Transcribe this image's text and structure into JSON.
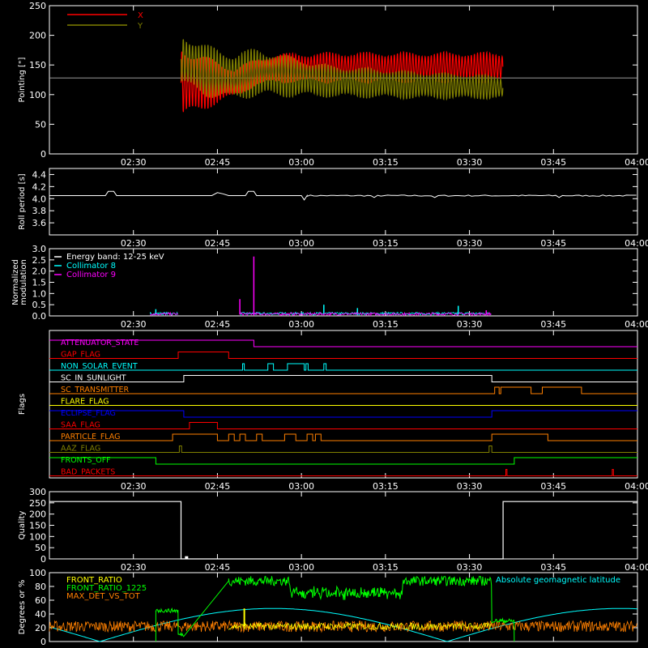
{
  "x_ticks": [
    "02:30",
    "02:45",
    "03:00",
    "03:15",
    "03:30",
    "03:45",
    "04:00"
  ],
  "chart_data": [
    {
      "type": "line",
      "ylabel": "Pointing [\"]",
      "ylim": [
        0,
        250
      ],
      "y_ticks": [
        "0",
        "50",
        "100",
        "150",
        "200",
        "250"
      ],
      "x_range_minutes": [
        15,
        120
      ],
      "legend": [
        {
          "name": "X",
          "color": "#ff0000"
        },
        {
          "name": "Y",
          "color": "#808000"
        }
      ],
      "baseline": 128,
      "data_interval": [
        38.5,
        96
      ],
      "series": [
        {
          "name": "X",
          "color": "#ff0000",
          "envelope": [
            {
              "t": 38.5,
              "lo": 55,
              "hi": 185
            },
            {
              "t": 43,
              "lo": 75,
              "hi": 165
            },
            {
              "t": 48,
              "lo": 95,
              "hi": 145
            },
            {
              "t": 52,
              "lo": 115,
              "hi": 160
            },
            {
              "t": 56,
              "lo": 120,
              "hi": 170
            },
            {
              "t": 65,
              "lo": 120,
              "hi": 172
            },
            {
              "t": 80,
              "lo": 120,
              "hi": 172
            },
            {
              "t": 96,
              "lo": 120,
              "hi": 172
            }
          ]
        },
        {
          "name": "Y",
          "color": "#808000",
          "envelope": [
            {
              "t": 38.5,
              "lo": 115,
              "hi": 205
            },
            {
              "t": 43,
              "lo": 95,
              "hi": 185
            },
            {
              "t": 48,
              "lo": 90,
              "hi": 170
            },
            {
              "t": 52,
              "lo": 95,
              "hi": 180
            },
            {
              "t": 56,
              "lo": 95,
              "hi": 170
            },
            {
              "t": 65,
              "lo": 95,
              "hi": 150
            },
            {
              "t": 80,
              "lo": 92,
              "hi": 140
            },
            {
              "t": 96,
              "lo": 92,
              "hi": 132
            }
          ]
        }
      ]
    },
    {
      "type": "line",
      "ylabel": "Roll period [s]",
      "ylim": [
        3.4,
        4.5
      ],
      "y_ticks": [
        "3.6",
        "3.8",
        "4.0",
        "4.2",
        "4.4"
      ],
      "series": [
        {
          "name": "",
          "color": "#ffffff",
          "baseline": 4.05,
          "x": [
            15,
            25,
            25.5,
            26.5,
            27,
            44,
            45,
            46,
            47,
            50,
            50.5,
            51.5,
            52,
            60,
            60.5,
            61
          ],
          "y": [
            4.05,
            4.05,
            4.12,
            4.12,
            4.05,
            4.05,
            4.1,
            4.08,
            4.05,
            4.05,
            4.12,
            4.12,
            4.05,
            4.05,
            3.98,
            4.05
          ]
        }
      ]
    },
    {
      "type": "line",
      "ylabel": "Normalized modulation",
      "ylim": [
        0,
        3.0
      ],
      "y_ticks": [
        "0.0",
        "0.5",
        "1.0",
        "1.5",
        "2.0",
        "2.5",
        "3.0"
      ],
      "legend": [
        {
          "name": "Energy band: 12-25 keV",
          "color": "#ffffff"
        },
        {
          "name": "Collimator 8",
          "color": "#00ffff"
        },
        {
          "name": "Collimator 9",
          "color": "#ff00ff"
        }
      ],
      "series": [
        {
          "name": "Collimator 8",
          "color": "#00ffff",
          "baseline": 0.08,
          "spikes": [
            {
              "t": 34,
              "v": 0.3
            },
            {
              "t": 64,
              "v": 0.5
            },
            {
              "t": 70,
              "v": 0.35
            },
            {
              "t": 88,
              "v": 0.45
            }
          ]
        },
        {
          "name": "Collimator 9",
          "color": "#ff00ff",
          "baseline": 0.06,
          "spikes": [
            {
              "t": 49,
              "v": 0.75
            },
            {
              "t": 51.5,
              "v": 2.65
            },
            {
              "t": 93,
              "v": 0.25
            }
          ]
        }
      ],
      "intervals": [
        [
          33,
          38
        ],
        [
          49,
          94
        ]
      ]
    },
    {
      "type": "table",
      "ylabel": "Flags",
      "flags": [
        {
          "name": "ATTENUATOR_STATE",
          "color": "#ff00ff",
          "steps": [
            {
              "t": 15,
              "v": 1
            },
            {
              "t": 51.5,
              "v": 0
            }
          ]
        },
        {
          "name": "GAP_FLAG",
          "color": "#ff0000",
          "steps": [
            {
              "t": 15,
              "v": 0
            },
            {
              "t": 38,
              "v": 1
            },
            {
              "t": 47,
              "v": 0
            }
          ]
        },
        {
          "name": "NON_SOLAR_EVENT",
          "color": "#00ffff",
          "steps": [
            {
              "t": 15,
              "v": 0
            },
            {
              "t": 49.5,
              "v": 1
            },
            {
              "t": 49.8,
              "v": 0
            },
            {
              "t": 54,
              "v": 1
            },
            {
              "t": 55,
              "v": 0
            },
            {
              "t": 57.5,
              "v": 1
            },
            {
              "t": 60.5,
              "v": 0
            },
            {
              "t": 60.8,
              "v": 1
            },
            {
              "t": 61.2,
              "v": 0
            },
            {
              "t": 64,
              "v": 1
            },
            {
              "t": 64.4,
              "v": 0
            }
          ]
        },
        {
          "name": "SC_IN_SUNLIGHT",
          "color": "#ffffff",
          "steps": [
            {
              "t": 15,
              "v": 0
            },
            {
              "t": 39,
              "v": 1
            },
            {
              "t": 94,
              "v": 0
            }
          ]
        },
        {
          "name": "SC_TRANSMITTER",
          "color": "#ff8000",
          "steps": [
            {
              "t": 15,
              "v": 0
            },
            {
              "t": 94.5,
              "v": 1
            },
            {
              "t": 95.3,
              "v": 0
            },
            {
              "t": 95.6,
              "v": 1
            },
            {
              "t": 101,
              "v": 0
            },
            {
              "t": 103,
              "v": 1
            },
            {
              "t": 110,
              "v": 0
            }
          ]
        },
        {
          "name": "FLARE_FLAG",
          "color": "#ffff00",
          "steps": [
            {
              "t": 15,
              "v": 0
            }
          ]
        },
        {
          "name": "ECLIPSE_FLAG",
          "color": "#0000ff",
          "steps": [
            {
              "t": 15,
              "v": 1
            },
            {
              "t": 39,
              "v": 0
            },
            {
              "t": 94,
              "v": 1
            }
          ]
        },
        {
          "name": "SAA_FLAG",
          "color": "#ff0000",
          "steps": [
            {
              "t": 15,
              "v": 0
            },
            {
              "t": 40,
              "v": 1
            },
            {
              "t": 45,
              "v": 0
            }
          ]
        },
        {
          "name": "PARTICLE_FLAG",
          "color": "#ff8000",
          "steps": [
            {
              "t": 15,
              "v": 0
            },
            {
              "t": 37,
              "v": 1
            },
            {
              "t": 45,
              "v": 0
            },
            {
              "t": 47,
              "v": 1
            },
            {
              "t": 48,
              "v": 0
            },
            {
              "t": 49,
              "v": 1
            },
            {
              "t": 50,
              "v": 0
            },
            {
              "t": 52,
              "v": 1
            },
            {
              "t": 53,
              "v": 0
            },
            {
              "t": 57,
              "v": 1
            },
            {
              "t": 59,
              "v": 0
            },
            {
              "t": 61,
              "v": 1
            },
            {
              "t": 62,
              "v": 0
            },
            {
              "t": 62.5,
              "v": 1
            },
            {
              "t": 63.5,
              "v": 0
            },
            {
              "t": 94,
              "v": 1
            },
            {
              "t": 104,
              "v": 0
            }
          ]
        },
        {
          "name": "AAZ_FLAG",
          "color": "#808000",
          "steps": [
            {
              "t": 15,
              "v": 0
            },
            {
              "t": 38.2,
              "v": 1
            },
            {
              "t": 38.6,
              "v": 0
            },
            {
              "t": 93.5,
              "v": 1
            },
            {
              "t": 94,
              "v": 0
            }
          ]
        },
        {
          "name": "FRONTS_OFF",
          "color": "#00ff00",
          "steps": [
            {
              "t": 15,
              "v": 1
            },
            {
              "t": 34,
              "v": 0
            },
            {
              "t": 98,
              "v": 1
            }
          ]
        },
        {
          "name": "BAD_PACKETS",
          "color": "#ff0000",
          "steps": [
            {
              "t": 15,
              "v": 0
            },
            {
              "t": 96.5,
              "v": 1
            },
            {
              "t": 96.7,
              "v": 0
            },
            {
              "t": 115.5,
              "v": 1
            },
            {
              "t": 115.7,
              "v": 0
            }
          ]
        }
      ]
    },
    {
      "type": "line",
      "ylabel": "Quality",
      "ylim": [
        0,
        300
      ],
      "y_ticks": [
        "0",
        "50",
        "100",
        "150",
        "200",
        "250",
        "300"
      ],
      "series": [
        {
          "name": "",
          "color": "#ffffff",
          "x": [
            15,
            38.5,
            38.5,
            39.5,
            39.5,
            96,
            96,
            120
          ],
          "y": [
            256,
            256,
            0,
            0,
            0,
            0,
            256,
            256
          ]
        }
      ]
    },
    {
      "type": "line",
      "ylabel": "Degrees or %",
      "ylim": [
        0,
        100
      ],
      "y_ticks": [
        "0",
        "20",
        "40",
        "60",
        "80",
        "100"
      ],
      "legend": [
        {
          "name": "FRONT_RATIO",
          "color": "#ffff00"
        },
        {
          "name": "FRONT_RATIO_1225",
          "color": "#00ff00"
        },
        {
          "name": "MAX_DET_VS_TOT",
          "color": "#ff8000"
        }
      ],
      "right_legend": {
        "name": "Absolute geomagnetic latitude",
        "color": "#00ffff"
      },
      "series": [
        {
          "name": "FRONT_RATIO_1225",
          "color": "#00ff00",
          "segments": [
            {
              "t0": 34,
              "t1": 38,
              "level": 45
            },
            {
              "t0": 38,
              "t1": 39,
              "level": 10
            },
            {
              "t0": 47,
              "t1": 94,
              "level": 88
            },
            {
              "t0": 94,
              "t1": 98,
              "level": 30
            }
          ]
        },
        {
          "name": "MAX_DET_VS_TOT",
          "color": "#ff8000",
          "level": 22
        },
        {
          "name": "FRONT_RATIO",
          "color": "#ffff00",
          "level": 22
        },
        {
          "name": "Absolute geomagnetic latitude",
          "color": "#00ffff",
          "amplitude": 48,
          "period": 62
        }
      ]
    }
  ]
}
